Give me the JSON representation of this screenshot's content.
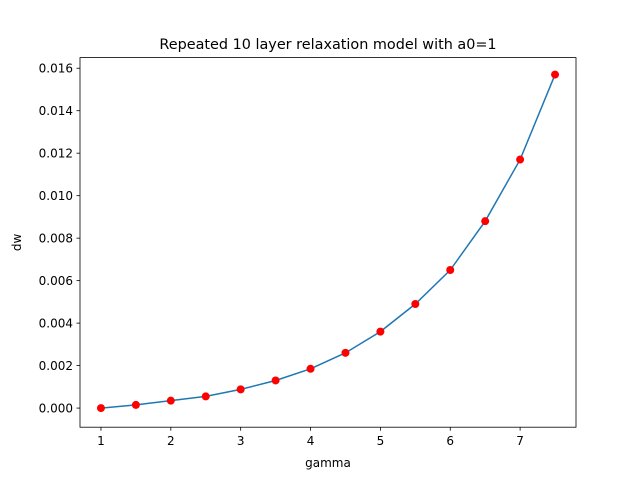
{
  "chart_data": {
    "type": "line",
    "title": "Repeated 10 layer relaxation model with a0=1",
    "xlabel": "gamma",
    "ylabel": "dw",
    "xlim": [
      0.7,
      7.8
    ],
    "ylim": [
      -0.0009,
      0.0165
    ],
    "xticks": [
      1,
      2,
      3,
      4,
      5,
      6,
      7
    ],
    "xtick_labels": [
      "1",
      "2",
      "3",
      "4",
      "5",
      "6",
      "7"
    ],
    "yticks": [
      0.0,
      0.002,
      0.004,
      0.006,
      0.008,
      0.01,
      0.012,
      0.014,
      0.016
    ],
    "ytick_labels": [
      "0.000",
      "0.002",
      "0.004",
      "0.006",
      "0.008",
      "0.010",
      "0.012",
      "0.014",
      "0.016"
    ],
    "grid": false,
    "series": [
      {
        "line_color": "#1f77b4",
        "marker_color": "#ff0000",
        "x": [
          1.0,
          1.5,
          2.0,
          2.5,
          3.0,
          3.5,
          4.0,
          4.5,
          5.0,
          5.5,
          6.0,
          6.5,
          7.0,
          7.5
        ],
        "y": [
          0.0,
          0.00015,
          0.00035,
          0.00055,
          0.00088,
          0.0013,
          0.00185,
          0.0026,
          0.0036,
          0.0049,
          0.0065,
          0.0088,
          0.0117,
          0.0157
        ]
      }
    ]
  }
}
